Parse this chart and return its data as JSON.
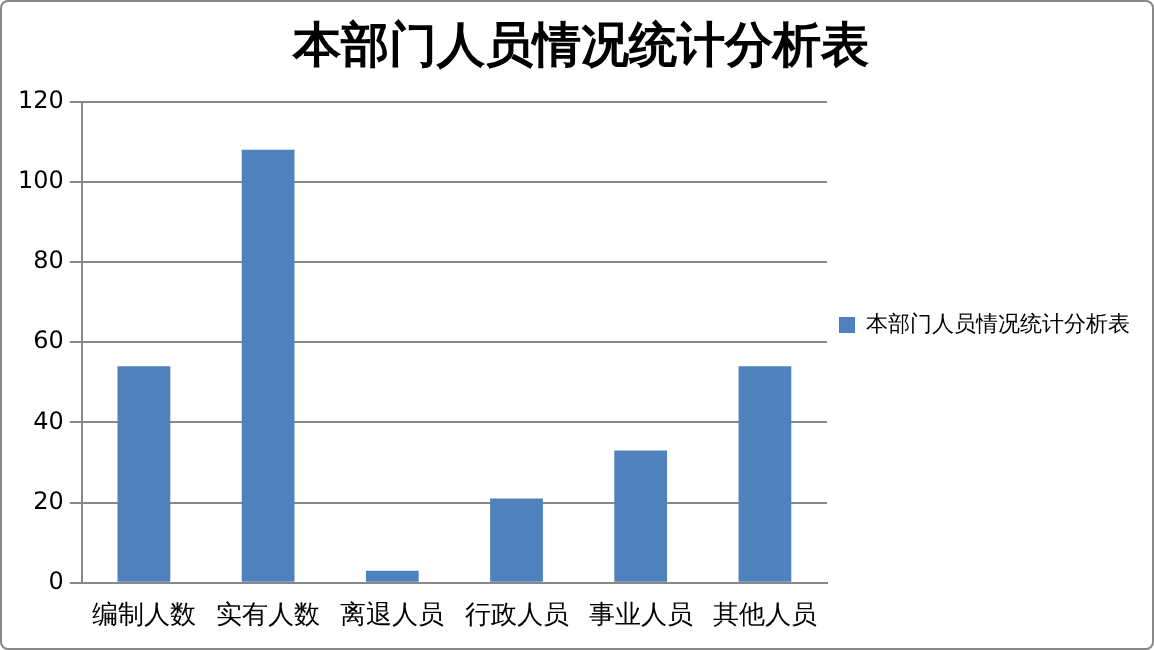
{
  "chart_data": {
    "type": "bar",
    "title": "本部门人员情况统计分析表",
    "categories": [
      "编制人数",
      "实有人数",
      "离退人员",
      "行政人员",
      "事业人员",
      "其他人员"
    ],
    "series": [
      {
        "name": "本部门人员情况统计分析表",
        "color": "#4f81bd",
        "values": [
          54,
          108,
          3,
          21,
          33,
          54
        ]
      }
    ],
    "ylim": [
      0,
      120
    ],
    "yticks": [
      0,
      20,
      40,
      60,
      80,
      100,
      120
    ],
    "grid": "y",
    "legend": "right"
  }
}
